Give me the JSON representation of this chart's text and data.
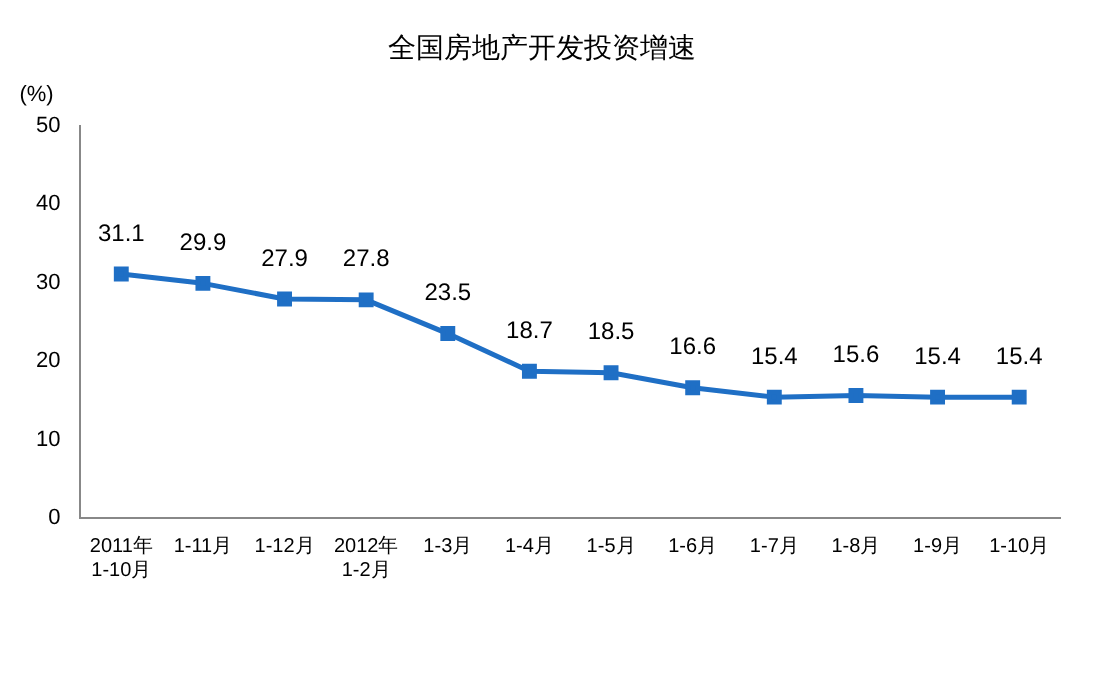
{
  "chart_data": {
    "type": "line",
    "title": "全国房地产开发投资增速",
    "ylabel": "(%)",
    "categories": [
      "2011年\n1-10月",
      "1-11月",
      "1-12月",
      "2012年\n1-2月",
      "1-3月",
      "1-4月",
      "1-5月",
      "1-6月",
      "1-7月",
      "1-8月",
      "1-9月",
      "1-10月"
    ],
    "series": [
      {
        "color": "#1f6fc5",
        "values": [
          31.1,
          29.9,
          27.9,
          27.8,
          23.5,
          18.7,
          18.5,
          16.6,
          15.4,
          15.6,
          15.4,
          15.4
        ]
      }
    ],
    "ylim": [
      0,
      50
    ],
    "yticks": [
      0,
      10,
      20,
      30,
      40,
      50
    ],
    "grid": false,
    "legend": false,
    "marker": "square",
    "line_style": "solid",
    "data_labels": true
  }
}
